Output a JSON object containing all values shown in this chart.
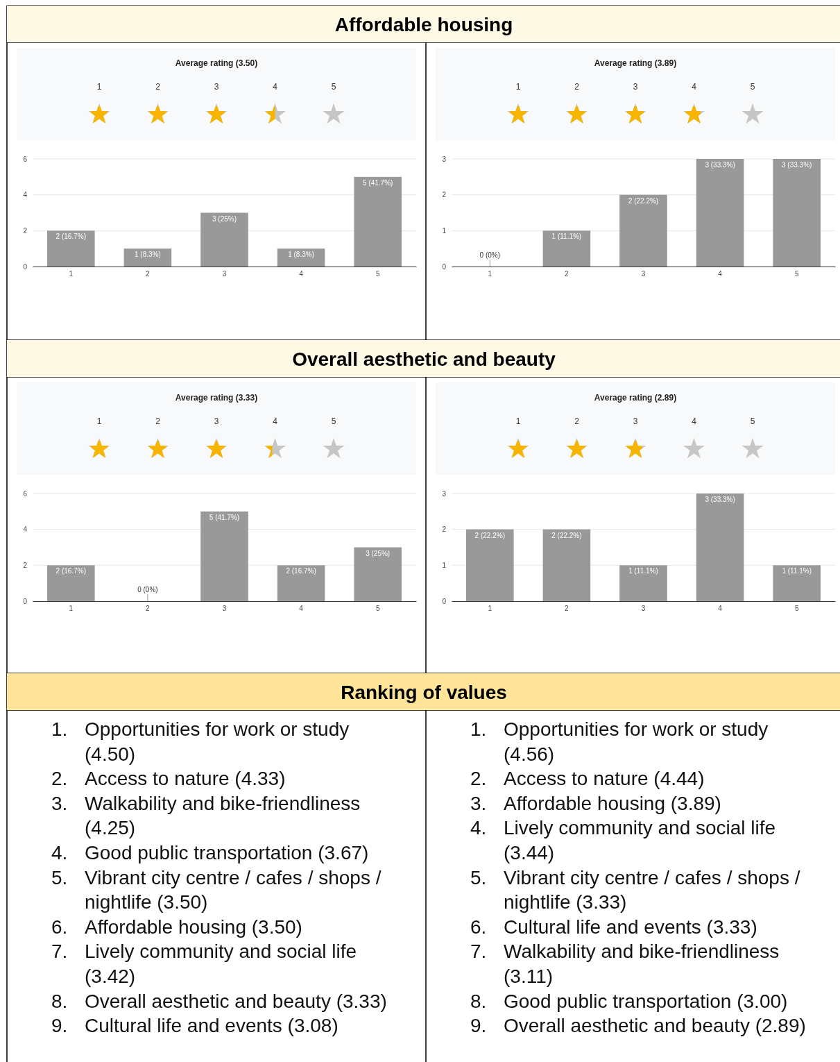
{
  "chart_data": [
    {
      "type": "bar",
      "title": "Average rating (3.50)",
      "annotations": [
        "Affordable housing"
      ],
      "categories": [
        "1",
        "2",
        "3",
        "4",
        "5"
      ],
      "values": [
        2,
        1,
        3,
        1,
        5
      ],
      "value_labels": [
        "2 (16.7%)",
        "1 (8.3%)",
        "3 (25%)",
        "1 (8.3%)",
        "5 (41.7%)"
      ],
      "color": "#999999",
      "ylim": [
        0,
        6
      ],
      "yticks": [
        0,
        2,
        4,
        6
      ],
      "grid": "y"
    },
    {
      "type": "bar",
      "title": "Average rating (3.89)",
      "categories": [
        "1",
        "2",
        "3",
        "4",
        "5"
      ],
      "values": [
        0,
        1,
        2,
        3,
        3
      ],
      "value_labels": [
        "0 (0%)",
        "1 (11.1%)",
        "2 (22.2%)",
        "3 (33.3%)",
        "3 (33.3%)"
      ],
      "color": "#999999",
      "ylim": [
        0,
        3
      ],
      "yticks": [
        0,
        1,
        2,
        3
      ],
      "grid": "y"
    },
    {
      "type": "bar",
      "title": "Average rating (3.33)",
      "annotations": [
        "Overall aesthetic and beauty"
      ],
      "categories": [
        "1",
        "2",
        "3",
        "4",
        "5"
      ],
      "values": [
        2,
        0,
        5,
        2,
        3
      ],
      "value_labels": [
        "2 (16.7%)",
        "0 (0%)",
        "5 (41.7%)",
        "2 (16.7%)",
        "3 (25%)"
      ],
      "color": "#999999",
      "ylim": [
        0,
        6
      ],
      "yticks": [
        0,
        2,
        4,
        6
      ],
      "grid": "y"
    },
    {
      "type": "bar",
      "title": "Average rating (2.89)",
      "categories": [
        "1",
        "2",
        "3",
        "4",
        "5"
      ],
      "values": [
        2,
        2,
        1,
        3,
        1
      ],
      "value_labels": [
        "2 (22.2%)",
        "2 (22.2%)",
        "1 (11.1%)",
        "3 (33.3%)",
        "1 (11.1%)"
      ],
      "color": "#999999",
      "ylim": [
        0,
        3
      ],
      "yticks": [
        0,
        1,
        2,
        3
      ],
      "grid": "y"
    },
    {
      "type": "other",
      "title": "Ranking of values",
      "annotations": [
        "1. Opportunities for work or study (4.50)",
        "2. Access to nature (4.33)",
        "3. Walkability and bike-friendliness (4.25)",
        "4. Good public transportation (3.67)",
        "5. Vibrant city centre / cafes / shops / nightlife (3.50)",
        "6. Affordable housing (3.50)",
        "7. Lively community and social life (3.42)",
        "8. Overall aesthetic and beauty (3.33)",
        "9. Cultural life and events (3.08)"
      ]
    },
    {
      "type": "other",
      "annotations": [
        "1. Opportunities for work or study (4.56)",
        "2. Access to nature (4.44)",
        "3. Affordable housing (3.89)",
        "4. Lively community and social life (3.44)",
        "5. Vibrant city centre / cafes / shops / nightlife (3.33)",
        "6. Cultural life and events (3.33)",
        "7. Walkability and bike-friendliness (3.11)",
        "8. Good public transportation (3.00)",
        "9. Overall aesthetic and beauty (2.89)"
      ]
    }
  ]
}
